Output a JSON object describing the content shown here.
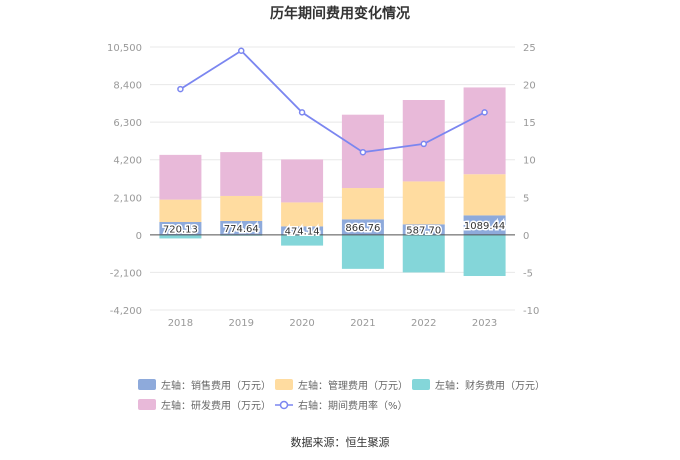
{
  "chart_data": {
    "type": "bar",
    "title": "历年期间费用变化情况",
    "categories": [
      "2018",
      "2019",
      "2020",
      "2021",
      "2022",
      "2023"
    ],
    "series": [
      {
        "name": "左轴：销售费用（万元）",
        "axis": "left",
        "color": "#8eaadb",
        "values": [
          720.13,
          774.64,
          474.14,
          866.76,
          587.7,
          1089.44
        ],
        "labels": [
          "720.13",
          "774.64",
          "474.14",
          "866.76",
          "587.70",
          "1089.44"
        ]
      },
      {
        "name": "左轴：管理费用（万元）",
        "axis": "left",
        "color": "#ffdca0",
        "values": [
          1250,
          1400,
          1340,
          1750,
          2400,
          2300
        ]
      },
      {
        "name": "左轴：财务费用（万元）",
        "axis": "left",
        "color": "#84d6d9",
        "values": [
          -200,
          -50,
          -600,
          -1900,
          -2100,
          -2300
        ]
      },
      {
        "name": "左轴：研发费用（万元）",
        "axis": "left",
        "color": "#e8b9d9",
        "values": [
          2500,
          2450,
          2400,
          4100,
          4550,
          4850
        ]
      },
      {
        "name": "右轴：期间费用率（%）",
        "axis": "right",
        "type": "line",
        "color": "#7b86f0",
        "values": [
          19.4,
          24.5,
          16.3,
          11.0,
          12.1,
          16.3
        ]
      }
    ],
    "left_axis": {
      "min": -4200,
      "max": 10500,
      "ticks": [
        "-4,200",
        "-2,100",
        "0",
        "2,100",
        "4,200",
        "6,300",
        "8,400",
        "10,500"
      ]
    },
    "right_axis": {
      "min": -10,
      "max": 25,
      "ticks": [
        "-10",
        "-5",
        "0",
        "5",
        "10",
        "15",
        "20",
        "25"
      ]
    },
    "grid": true,
    "legend_position": "bottom"
  },
  "source": "数据来源：恒生聚源"
}
